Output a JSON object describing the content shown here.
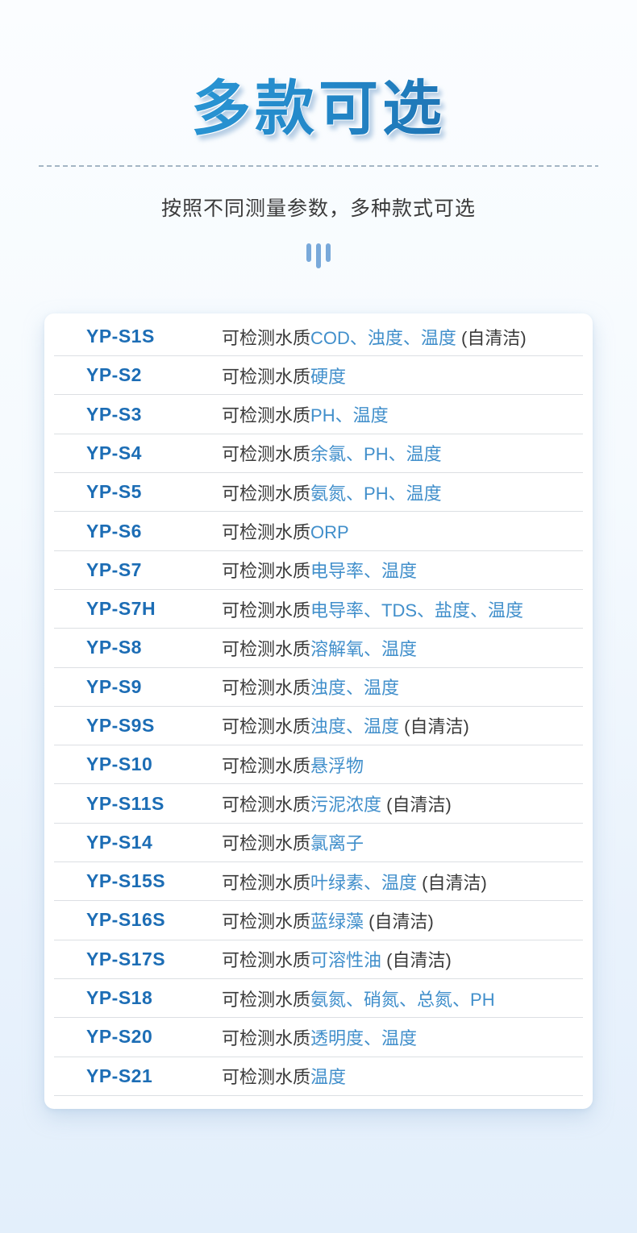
{
  "header": {
    "title": "多款可选",
    "subtitle": "按照不同测量参数，多种款式可选"
  },
  "decor": {
    "icon": "three-vertical-bars-icon"
  },
  "colors": {
    "title_gradient_start": "#2fa0dc",
    "title_gradient_end": "#1a5f9e",
    "model_name_blue": "#1c6db5",
    "parameter_blue": "#418fcb",
    "body_text_dark": "#3a3a3a",
    "bars_icon_blue": "#79a9da",
    "page_bg_top": "#fbfdff",
    "page_bg_bottom": "#e3effb",
    "card_bg": "#ffffff",
    "divider": "#dcdfe3"
  },
  "table": {
    "rows": [
      {
        "model": "YP-S1S",
        "segments": [
          {
            "text": "可检测水质",
            "type": "plain"
          },
          {
            "text": "COD、浊度、温度",
            "type": "param"
          },
          {
            "text": " (自清洁)",
            "type": "plain"
          }
        ]
      },
      {
        "model": "YP-S2",
        "segments": [
          {
            "text": "可检测水质",
            "type": "plain"
          },
          {
            "text": "硬度",
            "type": "param"
          }
        ]
      },
      {
        "model": "YP-S3",
        "segments": [
          {
            "text": "可检测水质",
            "type": "plain"
          },
          {
            "text": "PH、温度",
            "type": "param"
          }
        ]
      },
      {
        "model": "YP-S4",
        "segments": [
          {
            "text": "可检测水质",
            "type": "plain"
          },
          {
            "text": "余氯、PH、温度",
            "type": "param"
          }
        ]
      },
      {
        "model": "YP-S5",
        "segments": [
          {
            "text": "可检测水质",
            "type": "plain"
          },
          {
            "text": "氨氮、PH、温度",
            "type": "param"
          }
        ]
      },
      {
        "model": "YP-S6",
        "segments": [
          {
            "text": "可检测水质",
            "type": "plain"
          },
          {
            "text": "ORP",
            "type": "param"
          }
        ]
      },
      {
        "model": "YP-S7",
        "segments": [
          {
            "text": "可检测水质",
            "type": "plain"
          },
          {
            "text": "电导率、温度",
            "type": "param"
          }
        ]
      },
      {
        "model": "YP-S7H",
        "segments": [
          {
            "text": "可检测水质",
            "type": "plain"
          },
          {
            "text": "电导率、TDS、盐度、温度",
            "type": "param"
          }
        ]
      },
      {
        "model": "YP-S8",
        "segments": [
          {
            "text": "可检测水质",
            "type": "plain"
          },
          {
            "text": "溶解氧、温度",
            "type": "param"
          }
        ]
      },
      {
        "model": "YP-S9",
        "segments": [
          {
            "text": "可检测水质",
            "type": "plain"
          },
          {
            "text": "浊度、温度",
            "type": "param"
          }
        ]
      },
      {
        "model": "YP-S9S",
        "segments": [
          {
            "text": "可检测水质",
            "type": "plain"
          },
          {
            "text": "浊度、温度",
            "type": "param"
          },
          {
            "text": " (自清洁)",
            "type": "plain"
          }
        ]
      },
      {
        "model": "YP-S10",
        "segments": [
          {
            "text": "可检测水质",
            "type": "plain"
          },
          {
            "text": "悬浮物",
            "type": "param"
          }
        ]
      },
      {
        "model": "YP-S11S",
        "segments": [
          {
            "text": "可检测水质",
            "type": "plain"
          },
          {
            "text": "污泥浓度",
            "type": "param"
          },
          {
            "text": " (自清洁)",
            "type": "plain"
          }
        ]
      },
      {
        "model": "YP-S14",
        "segments": [
          {
            "text": "可检测水质",
            "type": "plain"
          },
          {
            "text": "氯离子",
            "type": "param"
          }
        ]
      },
      {
        "model": "YP-S15S",
        "segments": [
          {
            "text": "可检测水质",
            "type": "plain"
          },
          {
            "text": "叶绿素、温度",
            "type": "param"
          },
          {
            "text": " (自清洁)",
            "type": "plain"
          }
        ]
      },
      {
        "model": "YP-S16S",
        "segments": [
          {
            "text": "可检测水质",
            "type": "plain"
          },
          {
            "text": "蓝绿藻",
            "type": "param"
          },
          {
            "text": " (自清洁)",
            "type": "plain"
          }
        ]
      },
      {
        "model": "YP-S17S",
        "segments": [
          {
            "text": "可检测水质",
            "type": "plain"
          },
          {
            "text": "可溶性油",
            "type": "param"
          },
          {
            "text": " (自清洁)",
            "type": "plain"
          }
        ]
      },
      {
        "model": "YP-S18",
        "segments": [
          {
            "text": "可检测水质",
            "type": "plain"
          },
          {
            "text": "氨氮、硝氮、总氮、PH",
            "type": "param"
          }
        ]
      },
      {
        "model": "YP-S20",
        "segments": [
          {
            "text": "可检测水质",
            "type": "plain"
          },
          {
            "text": "透明度、温度",
            "type": "param"
          }
        ]
      },
      {
        "model": "YP-S21",
        "segments": [
          {
            "text": "可检测水质",
            "type": "plain"
          },
          {
            "text": "温度",
            "type": "param"
          }
        ]
      }
    ]
  }
}
